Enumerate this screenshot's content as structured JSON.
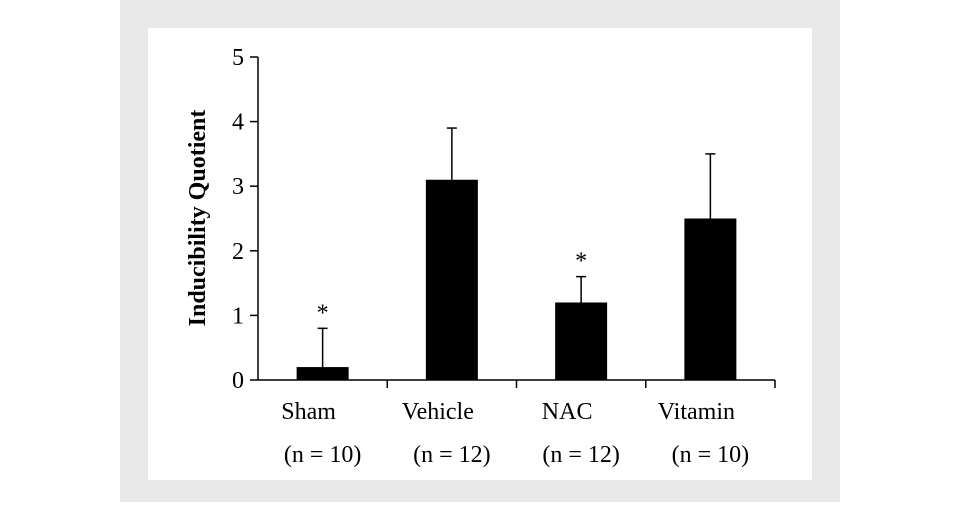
{
  "chart_data": {
    "type": "bar",
    "y_label": "Inducibility Quotient",
    "categories": [
      "Sham",
      "Vehicle",
      "NAC",
      "Vitamin"
    ],
    "group_sizes": [
      "(n = 10)",
      "(n = 12)",
      "(n = 12)",
      "(n = 10)"
    ],
    "values": [
      0.2,
      3.1,
      1.2,
      2.5
    ],
    "errors": [
      0.6,
      0.8,
      0.4,
      1.0
    ],
    "significance": [
      "*",
      null,
      "*",
      null
    ],
    "color": "#000000",
    "ylim": [
      0,
      5
    ],
    "yticks": [
      0,
      1,
      2,
      3,
      4,
      5
    ],
    "grid": false
  }
}
